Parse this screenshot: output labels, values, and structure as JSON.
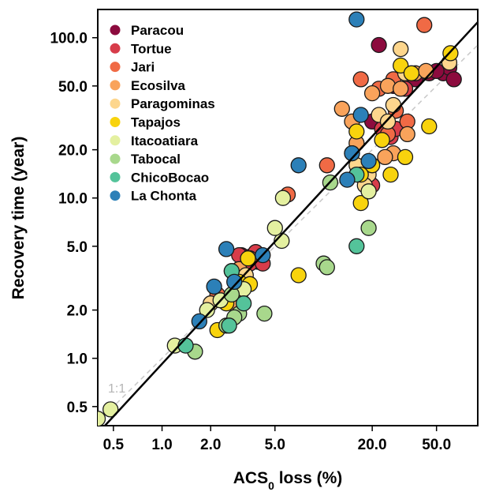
{
  "chart_data": {
    "type": "scatter",
    "title": "",
    "xlabel_main": "ACS",
    "xlabel_sub": "0",
    "xlabel_rest": " loss (%)",
    "ylabel": "Recovery time (year)",
    "x_scale": "log",
    "y_scale": "log",
    "xlim": [
      0.4,
      90
    ],
    "ylim": [
      0.38,
      150
    ],
    "x_ticks": [
      0.5,
      1.0,
      2.0,
      5.0,
      20.0,
      50.0
    ],
    "x_tick_labels": [
      "0.5",
      "1.0",
      "2.0",
      "5.0",
      "20.0",
      "50.0"
    ],
    "y_ticks": [
      0.5,
      1.0,
      2.0,
      5.0,
      10.0,
      20.0,
      50.0,
      100.0
    ],
    "y_tick_labels": [
      "0.5",
      "1.0",
      "2.0",
      "5.0",
      "10.0",
      "20.0",
      "50.0",
      "100.0"
    ],
    "reference_line_label": "1:1",
    "fit_line": {
      "x": [
        0.4,
        90
      ],
      "y": [
        0.34,
        125
      ]
    },
    "grid": false,
    "legend_position": "top-left",
    "series": [
      {
        "name": "Paracou",
        "color": "#8c0b3e",
        "points": [
          [
            22,
            90
          ],
          [
            27,
            50
          ],
          [
            37,
            55
          ],
          [
            45,
            60
          ],
          [
            55,
            60
          ],
          [
            60,
            65
          ],
          [
            64,
            55
          ],
          [
            50,
            62
          ],
          [
            20,
            30
          ],
          [
            3.1,
            4.4
          ],
          [
            3.5,
            4.3
          ],
          [
            3.9,
            4.0
          ]
        ]
      },
      {
        "name": "Tortue",
        "color": "#d73c4a",
        "points": [
          [
            3.0,
            4.4
          ],
          [
            3.1,
            2.6
          ],
          [
            3.5,
            3.9
          ],
          [
            3.8,
            4.6
          ],
          [
            4.2,
            3.9
          ],
          [
            20,
            12
          ],
          [
            23,
            27
          ],
          [
            26,
            24
          ],
          [
            28,
            27
          ],
          [
            32,
            48
          ]
        ]
      },
      {
        "name": "Jari",
        "color": "#f06a45",
        "points": [
          [
            17,
            55
          ],
          [
            22,
            48
          ],
          [
            28,
            35
          ],
          [
            33,
            30
          ],
          [
            42,
            120
          ],
          [
            10.5,
            16
          ],
          [
            25,
            25
          ],
          [
            27,
            55
          ],
          [
            6.0,
            10.5
          ],
          [
            3.5,
            4.2
          ],
          [
            2.7,
            3.5
          ],
          [
            2.2,
            2.5
          ]
        ]
      },
      {
        "name": "Ecosilva",
        "color": "#f9a35b",
        "points": [
          [
            13,
            36
          ],
          [
            15,
            30
          ],
          [
            20,
            45
          ],
          [
            25,
            50
          ],
          [
            30,
            48
          ],
          [
            33,
            25
          ],
          [
            27,
            19
          ],
          [
            24,
            18
          ],
          [
            37,
            60
          ],
          [
            43,
            62
          ],
          [
            16,
            22
          ],
          [
            3.0,
            3.6
          ],
          [
            2.8,
            2.2
          ]
        ]
      },
      {
        "name": "Paragominas",
        "color": "#fdd68d",
        "points": [
          [
            30,
            85
          ],
          [
            60,
            70
          ],
          [
            32,
            60
          ],
          [
            27,
            38
          ],
          [
            22,
            33
          ],
          [
            19,
            14
          ],
          [
            16,
            16
          ],
          [
            18,
            12
          ],
          [
            25,
            30
          ],
          [
            2.0,
            2.2
          ],
          [
            3.3,
            3.3
          ]
        ]
      },
      {
        "name": "Tapajos",
        "color": "#f8d30d",
        "points": [
          [
            30,
            67
          ],
          [
            35,
            60
          ],
          [
            45,
            28
          ],
          [
            32,
            18
          ],
          [
            26,
            14
          ],
          [
            23,
            23
          ],
          [
            20,
            16
          ],
          [
            17,
            9.3
          ],
          [
            17,
            14
          ],
          [
            16,
            26
          ],
          [
            7.0,
            3.3
          ],
          [
            2.2,
            1.5
          ],
          [
            3.0,
            3.0
          ],
          [
            3.4,
            4.2
          ],
          [
            2.9,
            2.6
          ],
          [
            2.5,
            2.2
          ],
          [
            61,
            80
          ],
          [
            3.5,
            2.9
          ]
        ]
      },
      {
        "name": "Itacoatiara",
        "color": "#e4f0a0",
        "points": [
          [
            0.48,
            0.48
          ],
          [
            1.2,
            1.2
          ],
          [
            1.9,
            2.0
          ],
          [
            2.3,
            2.3
          ],
          [
            3.2,
            2.7
          ],
          [
            5.5,
            5.4
          ],
          [
            5.0,
            6.5
          ],
          [
            5.6,
            10
          ],
          [
            0.4,
            0.42
          ],
          [
            19,
            11
          ]
        ]
      },
      {
        "name": "Tabocal",
        "color": "#a8d88c",
        "points": [
          [
            10,
            3.9
          ],
          [
            10.5,
            3.7
          ],
          [
            19,
            6.5
          ],
          [
            15,
            19
          ],
          [
            11,
            12.5
          ],
          [
            4.3,
            1.9
          ],
          [
            1.6,
            1.1
          ],
          [
            2.5,
            1.6
          ],
          [
            3.0,
            1.9
          ],
          [
            2.8,
            1.8
          ],
          [
            2.7,
            2.5
          ]
        ]
      },
      {
        "name": "ChicoBocao",
        "color": "#54c39a",
        "points": [
          [
            1.4,
            1.2
          ],
          [
            3.2,
            2.2
          ],
          [
            16,
            5.0
          ],
          [
            16,
            14
          ],
          [
            2.7,
            3.5
          ],
          [
            2.6,
            1.6
          ]
        ]
      },
      {
        "name": "La Chonta",
        "color": "#2c80b8",
        "points": [
          [
            16,
            130
          ],
          [
            17,
            33
          ],
          [
            7.0,
            16
          ],
          [
            15,
            19
          ],
          [
            14,
            13
          ],
          [
            19,
            17
          ],
          [
            2.5,
            4.8
          ],
          [
            4.2,
            4.4
          ],
          [
            2.1,
            2.8
          ],
          [
            1.7,
            1.7
          ],
          [
            2.8,
            3.0
          ]
        ]
      }
    ]
  }
}
